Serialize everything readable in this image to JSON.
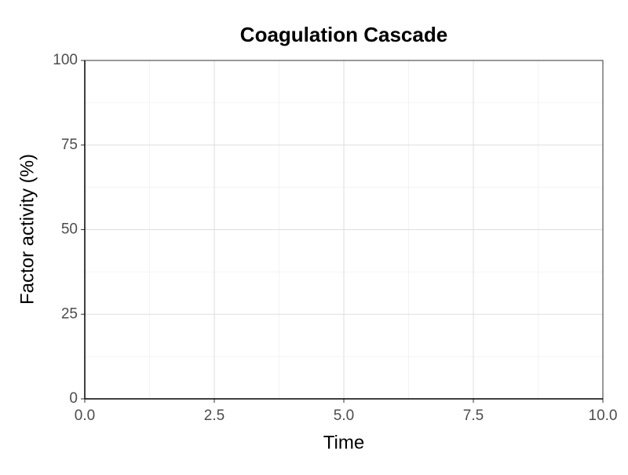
{
  "chart_data": {
    "type": "line",
    "title": "Coagulation Cascade",
    "x_label": "Time",
    "y_label": "Factor activity (%)",
    "xlim": [
      0,
      10
    ],
    "xticks": [
      {
        "value": 0,
        "label": "0.0"
      },
      {
        "value": 2.5,
        "label": "2.5"
      },
      {
        "value": 5,
        "label": "5.0"
      },
      {
        "value": 7.5,
        "label": "7.5"
      },
      {
        "value": 10,
        "label": "10.0"
      }
    ],
    "ylim": [
      0,
      100
    ],
    "yticks": [
      0,
      25,
      50,
      75,
      100
    ],
    "grid": true
  }
}
